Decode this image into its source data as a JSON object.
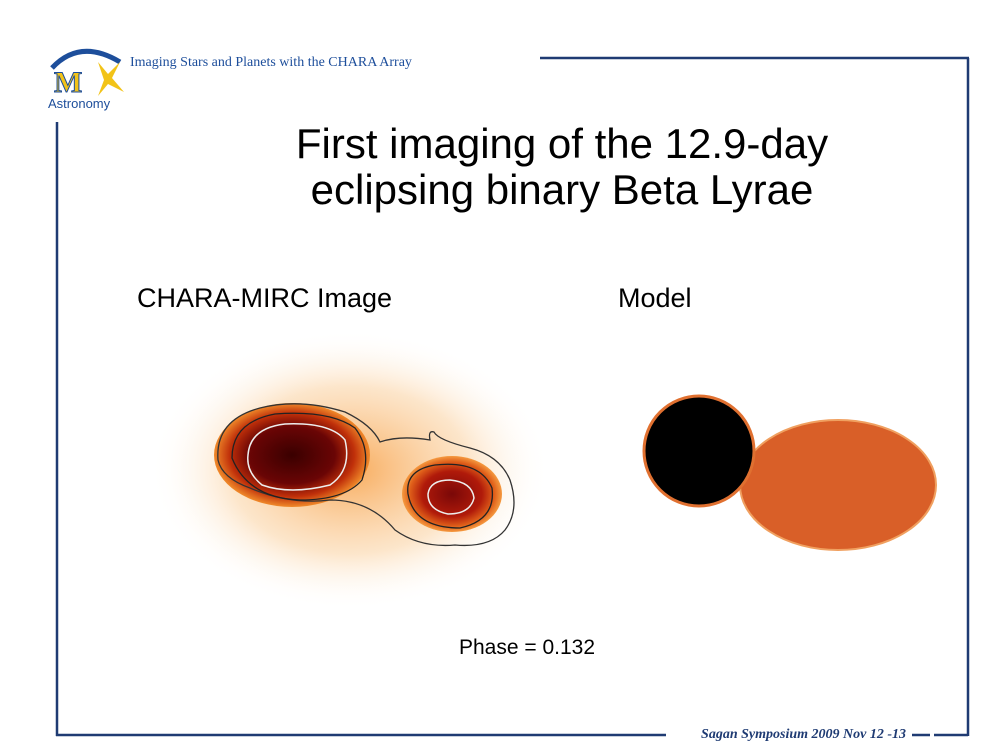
{
  "header": {
    "title": "Imaging Stars and Planets with the CHARA Array",
    "logo_letter": "M",
    "logo_text": "Astronomy"
  },
  "slide": {
    "title_lines": [
      "First imaging of the 12.9-day",
      "eclipsing binary Beta Lyrae"
    ],
    "left_label": "CHARA-MIRC Image",
    "right_label": "Model",
    "caption": "Phase = 0.132"
  },
  "footer": {
    "text": "Sagan Symposium 2009 Nov 12 -13"
  }
}
